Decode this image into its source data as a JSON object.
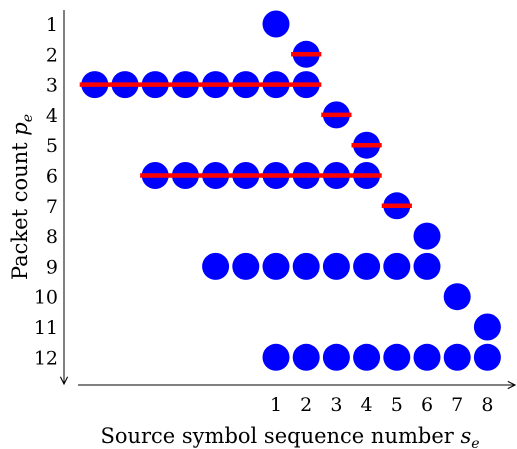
{
  "chart_data": {
    "type": "scatter",
    "xlabel": "Source symbol sequence number",
    "xlabel_symbol": "s",
    "xlabel_sub": "e",
    "ylabel": "Packet count",
    "ylabel_symbol": "p",
    "ylabel_sub": "e",
    "x_ticks": [
      "1",
      "2",
      "3",
      "4",
      "5",
      "6",
      "7",
      "8"
    ],
    "y_ticks": [
      "1",
      "2",
      "3",
      "4",
      "5",
      "6",
      "7",
      "8",
      "9",
      "10",
      "11",
      "12"
    ],
    "y_axis_inverted": true,
    "dot_color": "#0000ff",
    "bar_color": "#ff0000",
    "dots": [
      {
        "row": 1,
        "cols": [
          1
        ]
      },
      {
        "row": 2,
        "cols": [
          2
        ]
      },
      {
        "row": 3,
        "cols": [
          -5,
          -4,
          -3,
          -2,
          -1,
          0,
          1,
          2
        ]
      },
      {
        "row": 4,
        "cols": [
          3
        ]
      },
      {
        "row": 5,
        "cols": [
          4
        ]
      },
      {
        "row": 6,
        "cols": [
          -3,
          -2,
          -1,
          0,
          1,
          2,
          3,
          4
        ]
      },
      {
        "row": 7,
        "cols": [
          5
        ]
      },
      {
        "row": 8,
        "cols": [
          6
        ]
      },
      {
        "row": 9,
        "cols": [
          -1,
          0,
          1,
          2,
          3,
          4,
          5,
          6
        ]
      },
      {
        "row": 10,
        "cols": [
          7
        ]
      },
      {
        "row": 11,
        "cols": [
          8
        ]
      },
      {
        "row": 12,
        "cols": [
          1,
          2,
          3,
          4,
          5,
          6,
          7,
          8
        ]
      }
    ],
    "erasures": [
      {
        "row": 2,
        "from": 1.5,
        "to": 2.5
      },
      {
        "row": 3,
        "from": -5.5,
        "to": 2.5
      },
      {
        "row": 4,
        "from": 2.5,
        "to": 3.5
      },
      {
        "row": 5,
        "from": 3.5,
        "to": 4.5
      },
      {
        "row": 6,
        "from": -3.5,
        "to": 4.5
      },
      {
        "row": 7,
        "from": 4.5,
        "to": 5.5
      }
    ]
  }
}
